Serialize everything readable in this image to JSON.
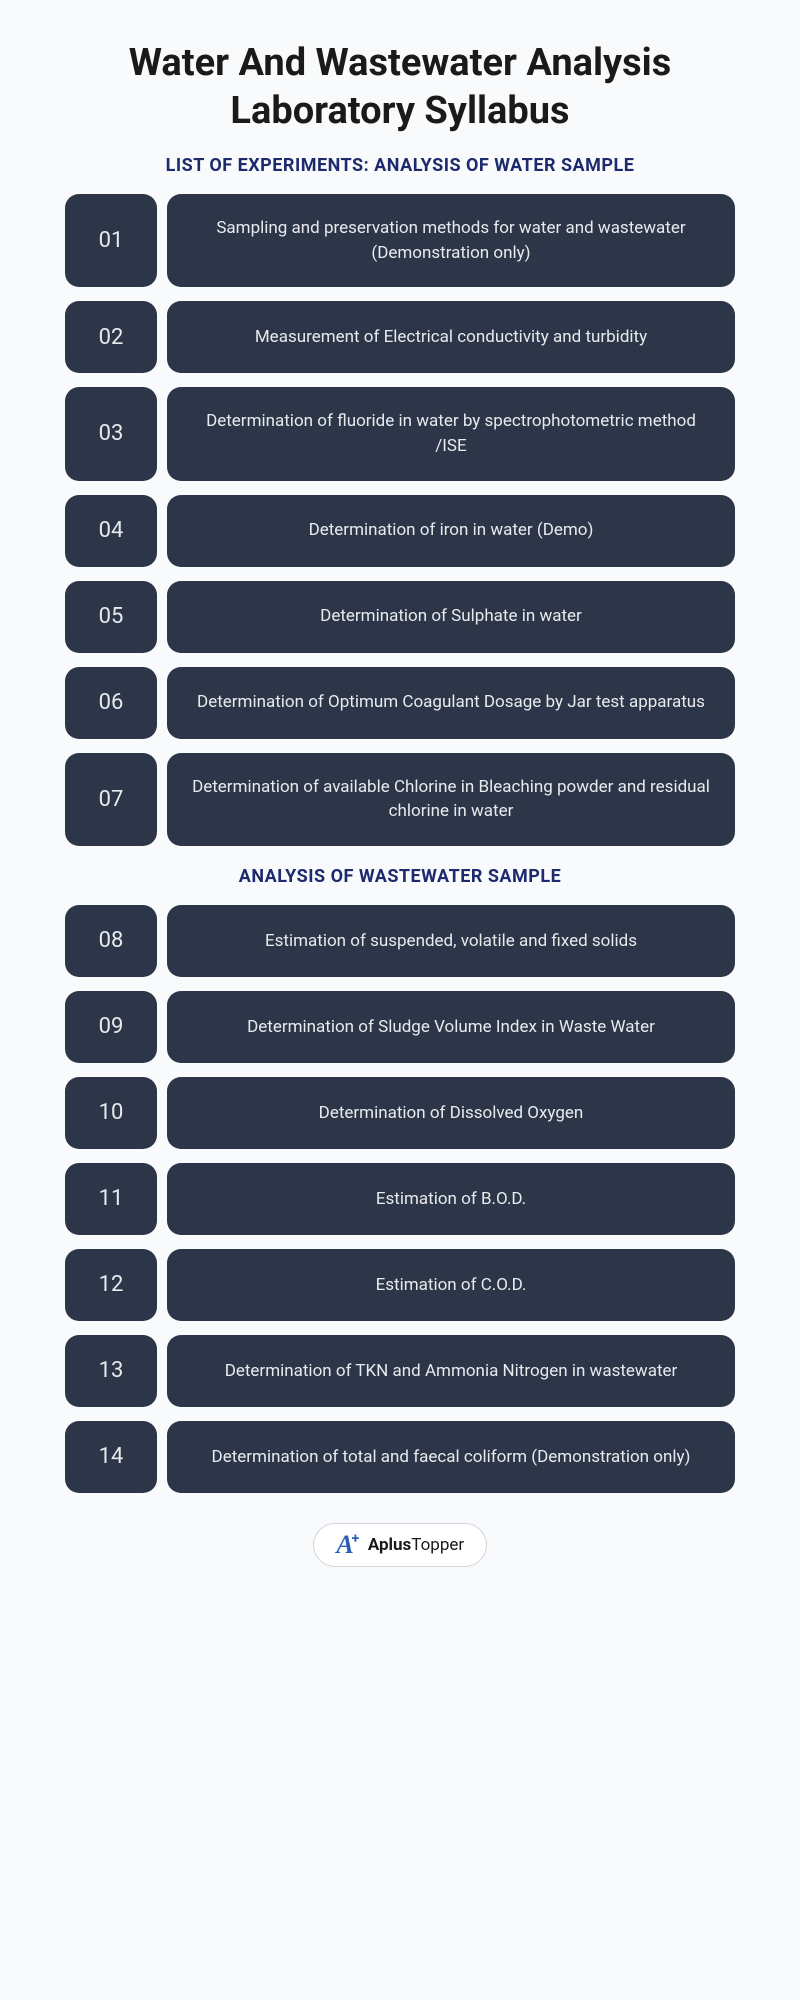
{
  "title": "Water And Wastewater Analysis Laboratory Syllabus",
  "sections": [
    {
      "header": "LIST OF EXPERIMENTS: ANALYSIS OF WATER SAMPLE",
      "items": [
        {
          "num": "01",
          "desc": "Sampling and preservation methods for water and wastewater (Demonstration only)"
        },
        {
          "num": "02",
          "desc": "Measurement of Electrical conductivity and turbidity"
        },
        {
          "num": "03",
          "desc": "Determination of fluoride in water by spectrophotometric method /ISE"
        },
        {
          "num": "04",
          "desc": "Determination of iron in water (Demo)"
        },
        {
          "num": "05",
          "desc": "Determination of Sulphate in water"
        },
        {
          "num": "06",
          "desc": "Determination of Optimum Coagulant Dosage by Jar test apparatus"
        },
        {
          "num": "07",
          "desc": "Determination of available Chlorine in Bleaching powder and residual chlorine in water"
        }
      ]
    },
    {
      "header": "ANALYSIS OF WASTEWATER SAMPLE",
      "items": [
        {
          "num": "08",
          "desc": "Estimation of suspended, volatile and fixed solids"
        },
        {
          "num": "09",
          "desc": "Determination of Sludge Volume Index in Waste Water"
        },
        {
          "num": "10",
          "desc": "Determination of Dissolved Oxygen"
        },
        {
          "num": "11",
          "desc": "Estimation of B.O.D."
        },
        {
          "num": "12",
          "desc": "Estimation of C.O.D."
        },
        {
          "num": "13",
          "desc": "Determination of TKN and Ammonia Nitrogen in wastewater"
        },
        {
          "num": "14",
          "desc": "Determination of total and faecal coliform (Demonstration only)"
        }
      ]
    }
  ],
  "brand": {
    "name_bold": "Aplus",
    "name_rest": "Topper"
  },
  "colors": {
    "background": "#f9fafb",
    "box_bg": "#2c3648",
    "box_text": "#e8eaed",
    "header_text": "#1e2a6e",
    "title_text": "#1a1a1a",
    "brand_blue": "#2c5fb8"
  }
}
